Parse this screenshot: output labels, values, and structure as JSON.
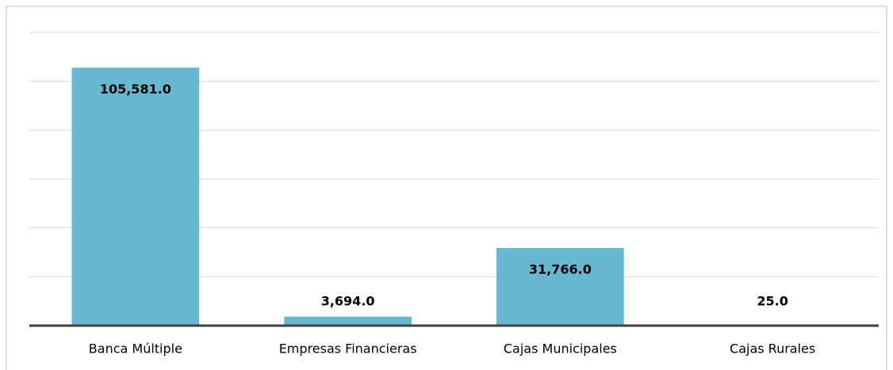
{
  "chart_data": {
    "type": "bar",
    "categories": [
      "Banca Múltiple",
      "Empresas Financieras",
      "Cajas Municipales",
      "Cajas Rurales"
    ],
    "values": [
      105581,
      3694,
      31766,
      25
    ],
    "value_labels": [
      "105,581.0",
      "3,694.0",
      "31,766.0",
      "25.0"
    ],
    "color": "#65b8cf",
    "ylim": [
      0,
      120000
    ],
    "yticks": [
      0,
      20000,
      40000,
      60000,
      80000,
      100000,
      120000
    ],
    "grid": true
  }
}
